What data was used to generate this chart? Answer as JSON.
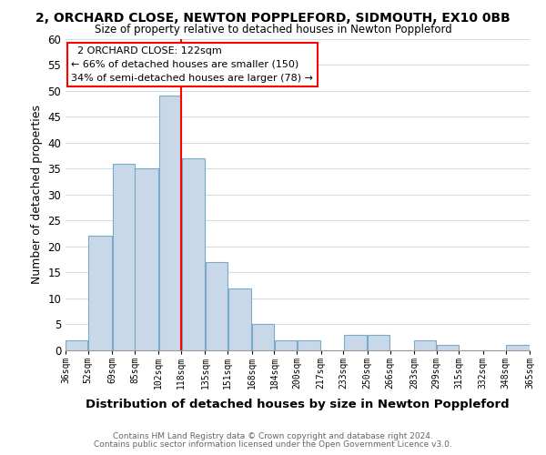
{
  "title": "2, ORCHARD CLOSE, NEWTON POPPLEFORD, SIDMOUTH, EX10 0BB",
  "subtitle": "Size of property relative to detached houses in Newton Poppleford",
  "xlabel": "Distribution of detached houses by size in Newton Poppleford",
  "ylabel": "Number of detached properties",
  "bar_edges": [
    36,
    52,
    69,
    85,
    102,
    118,
    135,
    151,
    168,
    184,
    200,
    217,
    233,
    250,
    266,
    283,
    299,
    315,
    332,
    348,
    365
  ],
  "bar_values": [
    2,
    22,
    36,
    35,
    49,
    37,
    17,
    12,
    5,
    2,
    2,
    0,
    3,
    3,
    0,
    2,
    1,
    0,
    0,
    1
  ],
  "bar_color": "#c8d8e8",
  "bar_edge_color": "#7aaac8",
  "reference_line_x": 118,
  "reference_line_color": "red",
  "annotation_title": "2 ORCHARD CLOSE: 122sqm",
  "annotation_line1": "← 66% of detached houses are smaller (150)",
  "annotation_line2": "34% of semi-detached houses are larger (78) →",
  "annotation_box_color": "white",
  "annotation_box_edge_color": "red",
  "ylim": [
    0,
    60
  ],
  "yticks": [
    0,
    5,
    10,
    15,
    20,
    25,
    30,
    35,
    40,
    45,
    50,
    55,
    60
  ],
  "tick_labels": [
    "36sqm",
    "52sqm",
    "69sqm",
    "85sqm",
    "102sqm",
    "118sqm",
    "135sqm",
    "151sqm",
    "168sqm",
    "184sqm",
    "200sqm",
    "217sqm",
    "233sqm",
    "250sqm",
    "266sqm",
    "283sqm",
    "299sqm",
    "315sqm",
    "332sqm",
    "348sqm",
    "365sqm"
  ],
  "footer_line1": "Contains HM Land Registry data © Crown copyright and database right 2024.",
  "footer_line2": "Contains public sector information licensed under the Open Government Licence v3.0.",
  "grid_color": "#d0dce8",
  "bg_color": "#ffffff"
}
